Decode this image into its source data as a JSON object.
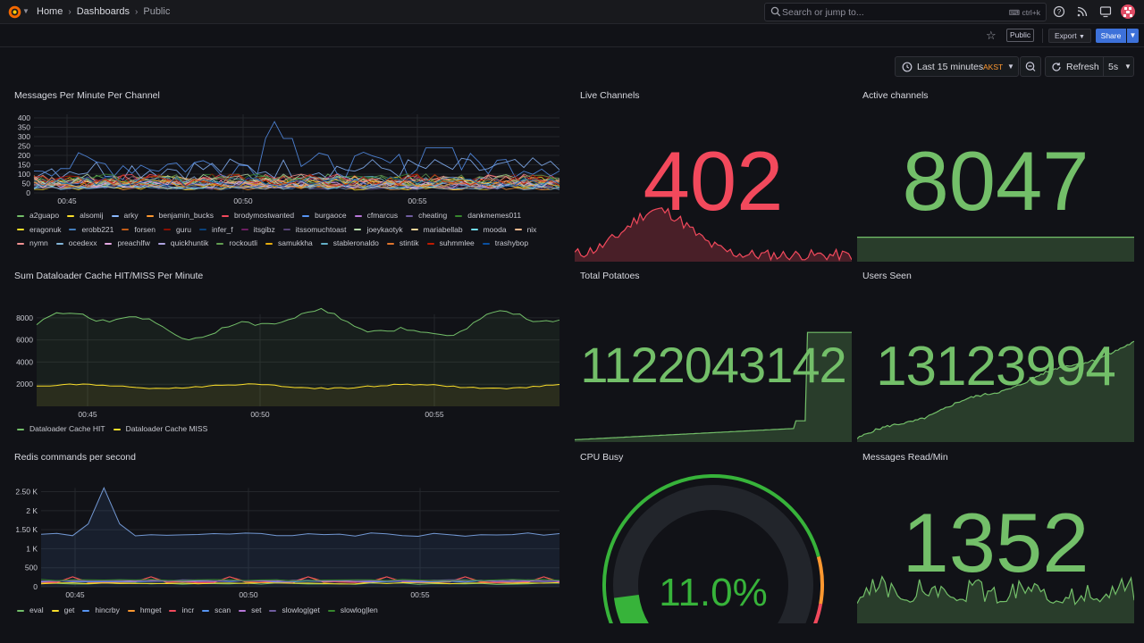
{
  "nav": {
    "breadcrumb": {
      "home": "Home",
      "dashboards": "Dashboards",
      "current": "Public"
    },
    "search_placeholder": "Search or jump to...",
    "search_shortcut": "ctrl+k"
  },
  "toolbar": {
    "public_badge": "Public",
    "export_label": "Export",
    "share_label": "Share",
    "time_range": "Last 15 minutes",
    "timezone": "AKST",
    "refresh_label": "Refresh",
    "refresh_interval": "5s"
  },
  "panels": {
    "messages_per_minute": {
      "title": "Messages Per Minute Per Channel",
      "y_ticks": [
        "400",
        "350",
        "300",
        "250",
        "200",
        "150",
        "100",
        "50",
        "0"
      ],
      "x_ticks": [
        "00:45",
        "00:50",
        "00:55"
      ],
      "legend": [
        {
          "name": "a2guapo",
          "color": "#73bf69"
        },
        {
          "name": "alsomij",
          "color": "#fade2a"
        },
        {
          "name": "arky",
          "color": "#8ab8ff"
        },
        {
          "name": "benjamin_bucks",
          "color": "#ff9830"
        },
        {
          "name": "brodymostwanted",
          "color": "#f2495c"
        },
        {
          "name": "burgaoce",
          "color": "#5794f2"
        },
        {
          "name": "cfmarcus",
          "color": "#b877d9"
        },
        {
          "name": "cheating",
          "color": "#705da0"
        },
        {
          "name": "dankmemes011",
          "color": "#37872d"
        },
        {
          "name": "eragonuk",
          "color": "#fade2a"
        },
        {
          "name": "erobb221",
          "color": "#447ebc"
        },
        {
          "name": "forsen",
          "color": "#c15c17"
        },
        {
          "name": "guru",
          "color": "#890f02"
        },
        {
          "name": "infer_f",
          "color": "#0a437c"
        },
        {
          "name": "itsgibz",
          "color": "#6d1f62"
        },
        {
          "name": "itssomuchtoast",
          "color": "#584477"
        },
        {
          "name": "joeykaotyk",
          "color": "#b7dbab"
        },
        {
          "name": "mariabellab",
          "color": "#f4d598"
        },
        {
          "name": "mooda",
          "color": "#70dbed"
        },
        {
          "name": "nix",
          "color": "#f9ba8f"
        },
        {
          "name": "nymn",
          "color": "#f29191"
        },
        {
          "name": "ocedexx",
          "color": "#82b5d8"
        },
        {
          "name": "preachlfw",
          "color": "#e5a8e2"
        },
        {
          "name": "quickhuntik",
          "color": "#aea2e0"
        },
        {
          "name": "rockoutli",
          "color": "#629e51"
        },
        {
          "name": "samukkha",
          "color": "#e5ac0e"
        },
        {
          "name": "stableronaldo",
          "color": "#64b0c8"
        },
        {
          "name": "stintik",
          "color": "#e0752d"
        },
        {
          "name": "suhmmlee",
          "color": "#bf1b00"
        },
        {
          "name": "trashybop",
          "color": "#0a50a1"
        }
      ]
    },
    "live_channels": {
      "title": "Live Channels",
      "value": "402",
      "color": "#f2495c"
    },
    "active_channels": {
      "title": "Active channels",
      "value": "8047",
      "color": "#73bf69"
    },
    "dataloader": {
      "title": "Sum Dataloader Cache HIT/MISS Per Minute",
      "y_ticks": [
        "8000",
        "6000",
        "4000",
        "2000"
      ],
      "x_ticks": [
        "00:45",
        "00:50",
        "00:55"
      ],
      "legend": [
        {
          "name": "Dataloader Cache HIT",
          "color": "#73bf69"
        },
        {
          "name": "Dataloader Cache MISS",
          "color": "#fade2a"
        }
      ]
    },
    "total_potatoes": {
      "title": "Total Potatoes",
      "value": "1122043142",
      "color": "#73bf69"
    },
    "users_seen": {
      "title": "Users Seen",
      "value": "13123994",
      "color": "#73bf69"
    },
    "redis": {
      "title": "Redis commands per second",
      "y_ticks": [
        "2.50 K",
        "2 K",
        "1.50 K",
        "1 K",
        "500",
        "0"
      ],
      "x_ticks": [
        "00:45",
        "00:50",
        "00:55"
      ],
      "legend": [
        {
          "name": "eval",
          "color": "#73bf69"
        },
        {
          "name": "get",
          "color": "#fade2a"
        },
        {
          "name": "hincrby",
          "color": "#5794f2"
        },
        {
          "name": "hmget",
          "color": "#ff9830"
        },
        {
          "name": "incr",
          "color": "#f2495c"
        },
        {
          "name": "scan",
          "color": "#5794f2"
        },
        {
          "name": "set",
          "color": "#b877d9"
        },
        {
          "name": "slowlog|get",
          "color": "#705da0"
        },
        {
          "name": "slowlog|len",
          "color": "#37872d"
        }
      ]
    },
    "cpu_busy": {
      "title": "CPU Busy",
      "value": "11.0%",
      "fraction": 0.11,
      "color": "#37b33a"
    },
    "messages_read": {
      "title": "Messages Read/Min",
      "value": "1352",
      "color": "#73bf69"
    }
  }
}
